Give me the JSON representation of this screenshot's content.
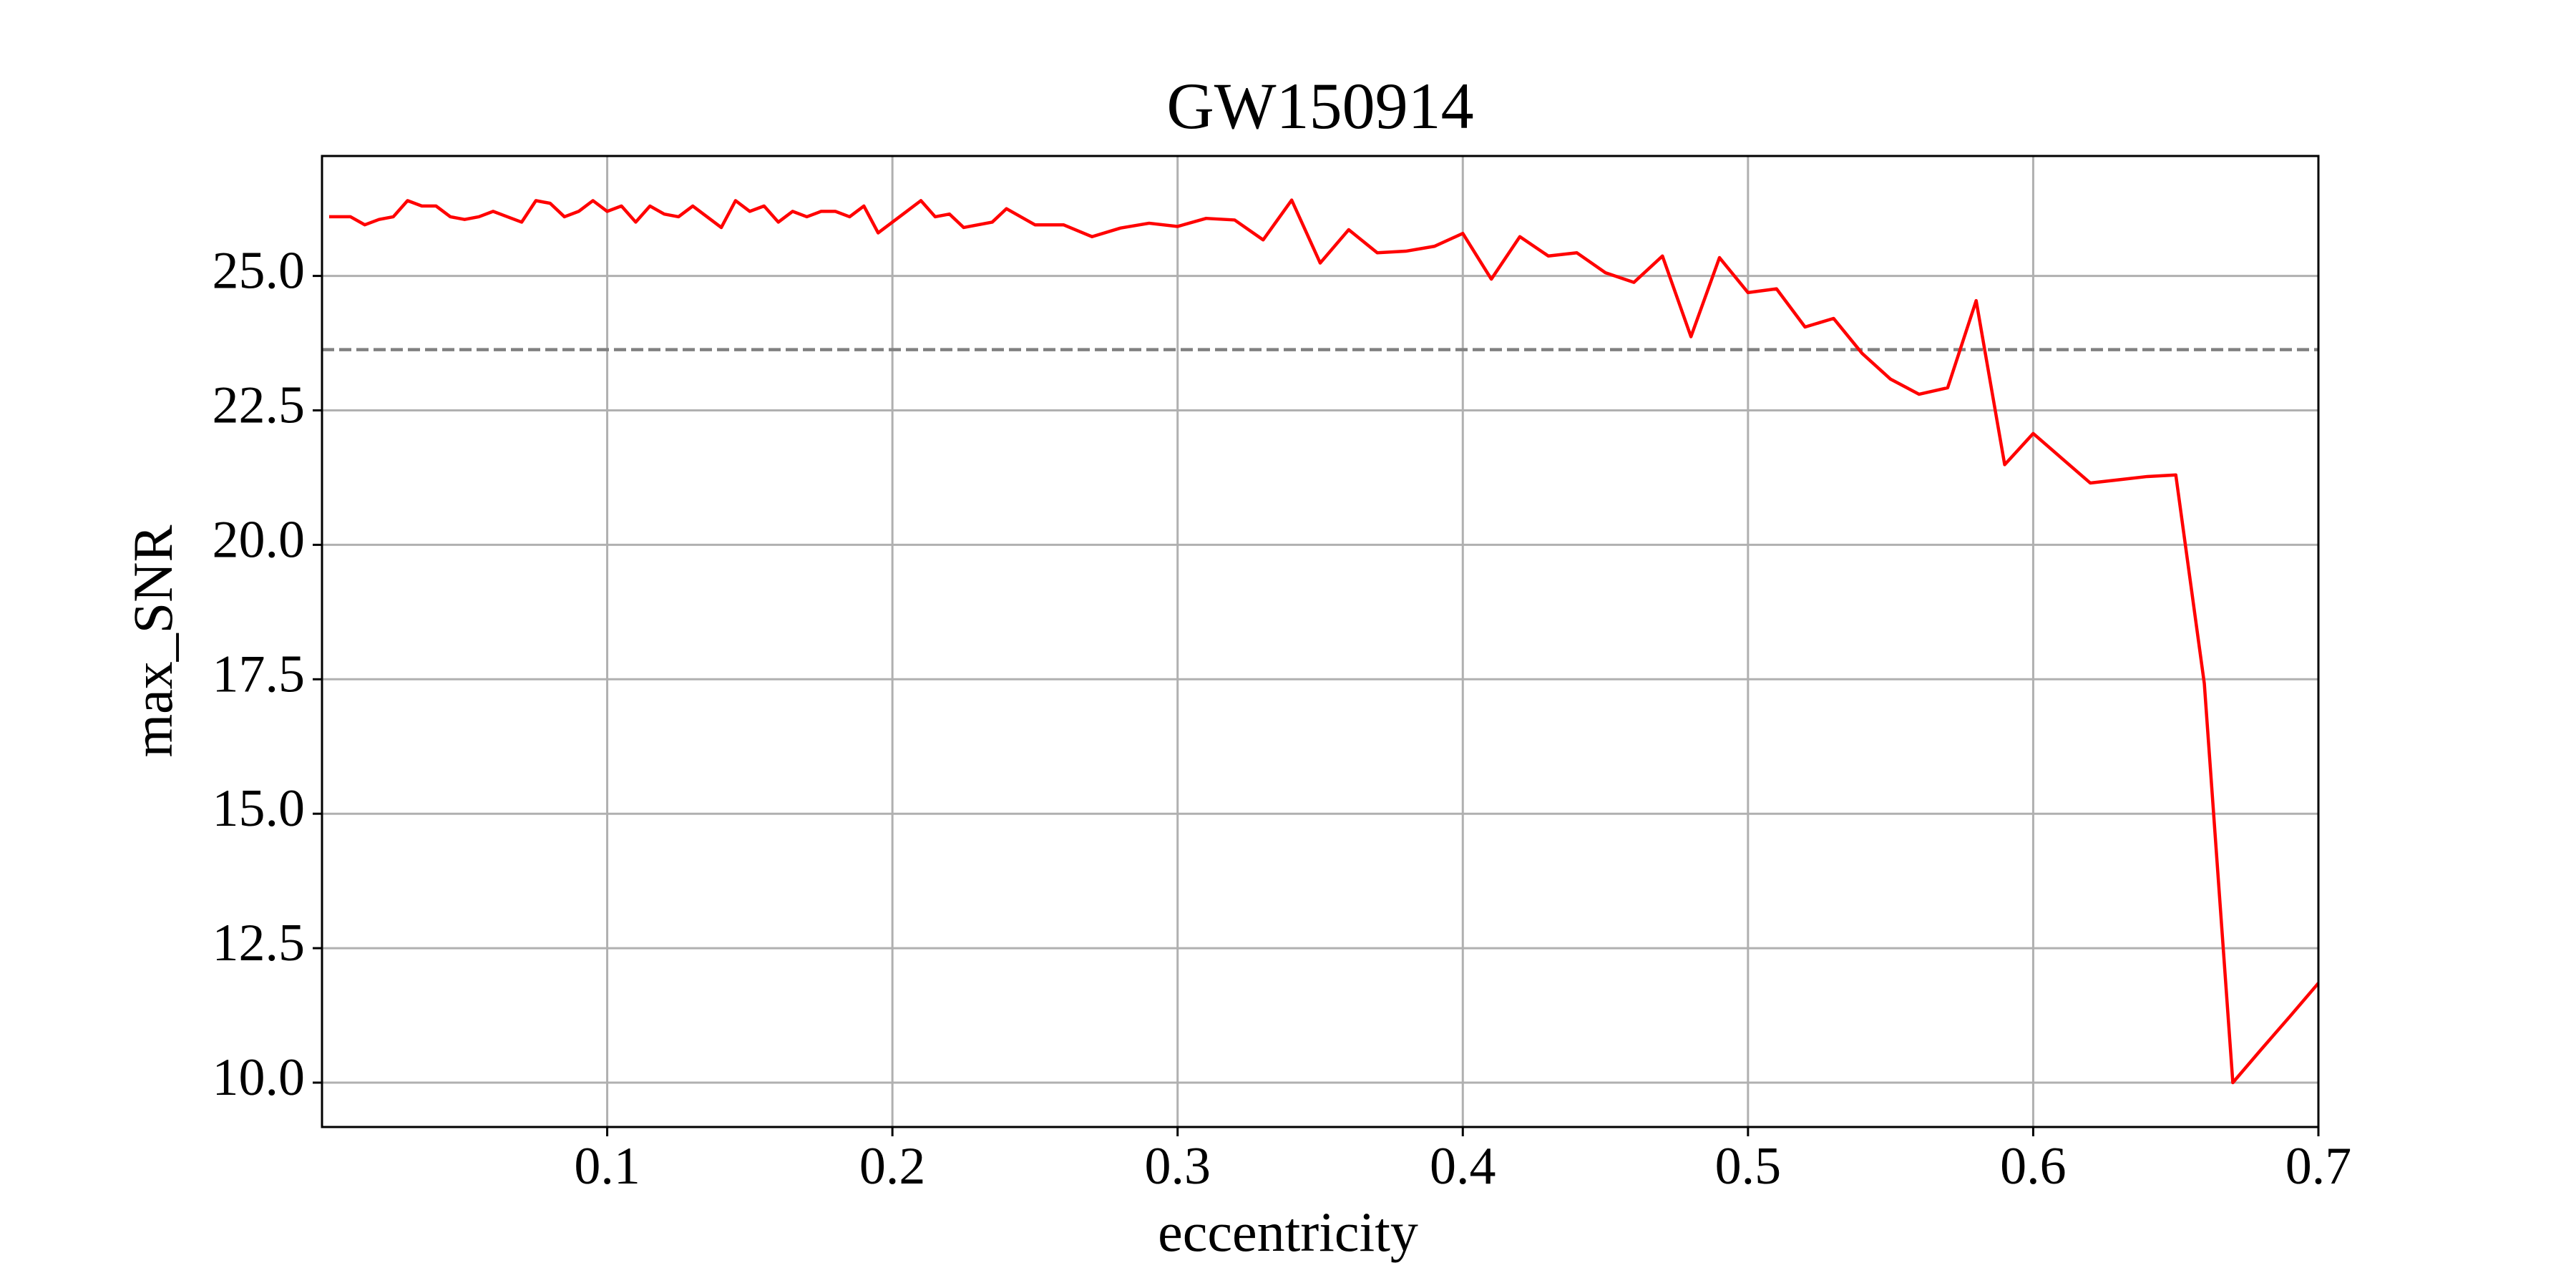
{
  "chart_data": {
    "type": "line",
    "title": "GW150914",
    "x_label": "eccentricity",
    "y_label": "max_SNR",
    "x": [
      0.0025,
      0.005,
      0.01,
      0.015,
      0.02,
      0.025,
      0.03,
      0.035,
      0.04,
      0.045,
      0.05,
      0.055,
      0.06,
      0.065,
      0.07,
      0.075,
      0.08,
      0.085,
      0.09,
      0.095,
      0.1,
      0.105,
      0.11,
      0.115,
      0.12,
      0.125,
      0.13,
      0.135,
      0.14,
      0.145,
      0.15,
      0.155,
      0.16,
      0.165,
      0.17,
      0.175,
      0.18,
      0.185,
      0.19,
      0.195,
      0.2,
      0.205,
      0.21,
      0.215,
      0.22,
      0.225,
      0.23,
      0.235,
      0.24,
      0.25,
      0.26,
      0.27,
      0.28,
      0.29,
      0.3,
      0.31,
      0.32,
      0.33,
      0.34,
      0.35,
      0.36,
      0.37,
      0.38,
      0.39,
      0.4,
      0.41,
      0.42,
      0.43,
      0.44,
      0.45,
      0.46,
      0.47,
      0.48,
      0.49,
      0.5,
      0.51,
      0.52,
      0.53,
      0.54,
      0.55,
      0.56,
      0.57,
      0.58,
      0.59,
      0.6,
      0.61,
      0.62,
      0.63,
      0.64,
      0.65,
      0.66,
      0.67,
      0.68,
      0.69,
      0.7
    ],
    "values": [
      26.1,
      26.1,
      26.1,
      25.95,
      26.05,
      26.1,
      26.4,
      26.3,
      26.3,
      26.1,
      26.05,
      26.1,
      26.2,
      26.1,
      26.0,
      26.4,
      26.35,
      26.1,
      26.2,
      26.4,
      26.2,
      26.3,
      26.0,
      26.3,
      26.15,
      26.1,
      26.3,
      26.1,
      25.9,
      26.4,
      26.2,
      26.3,
      26.0,
      26.2,
      26.1,
      26.2,
      26.2,
      26.1,
      26.3,
      25.8,
      26.0,
      26.2,
      26.4,
      26.1,
      26.15,
      25.9,
      25.95,
      26.0,
      26.25,
      25.95,
      25.95,
      25.73,
      25.89,
      25.98,
      25.92,
      26.07,
      26.04,
      25.67,
      26.41,
      25.24,
      25.86,
      25.43,
      25.46,
      25.55,
      25.79,
      24.94,
      25.73,
      25.37,
      25.43,
      25.06,
      24.88,
      25.37,
      23.87,
      25.34,
      24.69,
      24.76,
      24.05,
      24.21,
      23.56,
      23.08,
      22.8,
      22.92,
      24.54,
      21.49,
      22.07,
      21.61,
      21.15,
      21.21,
      21.27,
      21.3,
      17.42,
      10.0,
      10.62,
      11.23,
      11.85
    ],
    "color": "#ff0000",
    "hline": {
      "value": 23.63,
      "color": "#808080"
    },
    "xlim": [
      0,
      0.7
    ],
    "ylim": [
      9.175,
      27.23
    ],
    "xticks": [
      0.1,
      0.2,
      0.3,
      0.4,
      0.5,
      0.6,
      0.7
    ],
    "yticks": [
      {
        "value": 10,
        "label": "10.0"
      },
      {
        "value": 12.5,
        "label": "12.5"
      },
      {
        "value": 15,
        "label": "15.0"
      },
      {
        "value": 17.5,
        "label": "17.5"
      },
      {
        "value": 20,
        "label": "20.0"
      },
      {
        "value": 22.5,
        "label": "22.5"
      },
      {
        "value": 25,
        "label": "25.0"
      }
    ],
    "grid": true
  }
}
